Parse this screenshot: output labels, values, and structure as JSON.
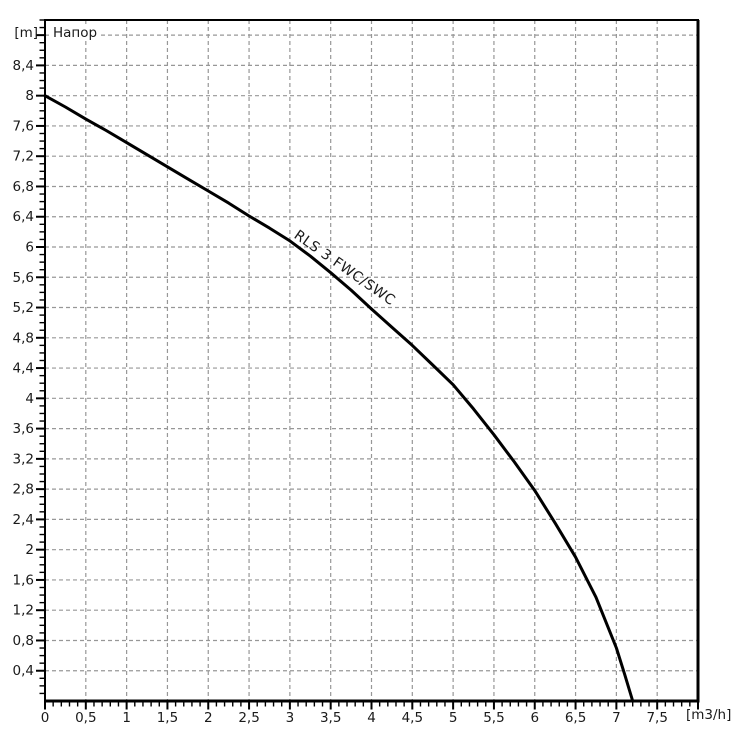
{
  "chart_data": {
    "type": "line",
    "title": "Напор",
    "y_unit_label": "[m]",
    "x_unit_label": "[m3/h]",
    "series": [
      {
        "name": "RLS 3 FWC/SWC",
        "points": [
          [
            0,
            8.0
          ],
          [
            0.25,
            7.85
          ],
          [
            0.5,
            7.69
          ],
          [
            0.75,
            7.54
          ],
          [
            1,
            7.38
          ],
          [
            1.25,
            7.22
          ],
          [
            1.5,
            7.06
          ],
          [
            1.75,
            6.9
          ],
          [
            2,
            6.74
          ],
          [
            2.25,
            6.58
          ],
          [
            2.5,
            6.41
          ],
          [
            2.75,
            6.25
          ],
          [
            3,
            6.08
          ],
          [
            3.25,
            5.88
          ],
          [
            3.5,
            5.66
          ],
          [
            3.75,
            5.43
          ],
          [
            4,
            5.18
          ],
          [
            4.25,
            4.94
          ],
          [
            4.5,
            4.7
          ],
          [
            4.75,
            4.44
          ],
          [
            5,
            4.18
          ],
          [
            5.25,
            3.86
          ],
          [
            5.5,
            3.52
          ],
          [
            5.75,
            3.16
          ],
          [
            6,
            2.78
          ],
          [
            6.25,
            2.35
          ],
          [
            6.5,
            1.9
          ],
          [
            6.75,
            1.37
          ],
          [
            7,
            0.7
          ],
          [
            7.1,
            0.36
          ],
          [
            7.2,
            0
          ]
        ]
      }
    ],
    "curve_label": {
      "text": "RLS 3 FWC/SWC",
      "x": 3.04,
      "y": 6.13,
      "angle_deg": 35
    },
    "x_axis": {
      "min": 0,
      "max": 8,
      "major_step": 0.5,
      "minor_step": 0.1,
      "tick_labels": [
        "0",
        "0,5",
        "1",
        "1,5",
        "2",
        "2,5",
        "3",
        "3,5",
        "4",
        "4,5",
        "5",
        "5,5",
        "6",
        "6,5",
        "7",
        "7,5"
      ]
    },
    "y_axis": {
      "min": 0,
      "max": 9,
      "major_step": 0.4,
      "minor_step": 0.1,
      "tick_labels": [
        "0,4",
        "0,8",
        "1,2",
        "1,6",
        "2",
        "2,4",
        "2,8",
        "3,2",
        "3,6",
        "4",
        "4,4",
        "4,8",
        "5,2",
        "5,6",
        "6",
        "6,4",
        "6,8",
        "7,2",
        "7,6",
        "8",
        "8,4"
      ]
    },
    "grid": true,
    "legend_position": "none",
    "colors": {
      "background": "#ffffff",
      "grid": "#979797",
      "axis": "#000000",
      "curve": "#000000",
      "text": "#1a1a1a"
    }
  }
}
